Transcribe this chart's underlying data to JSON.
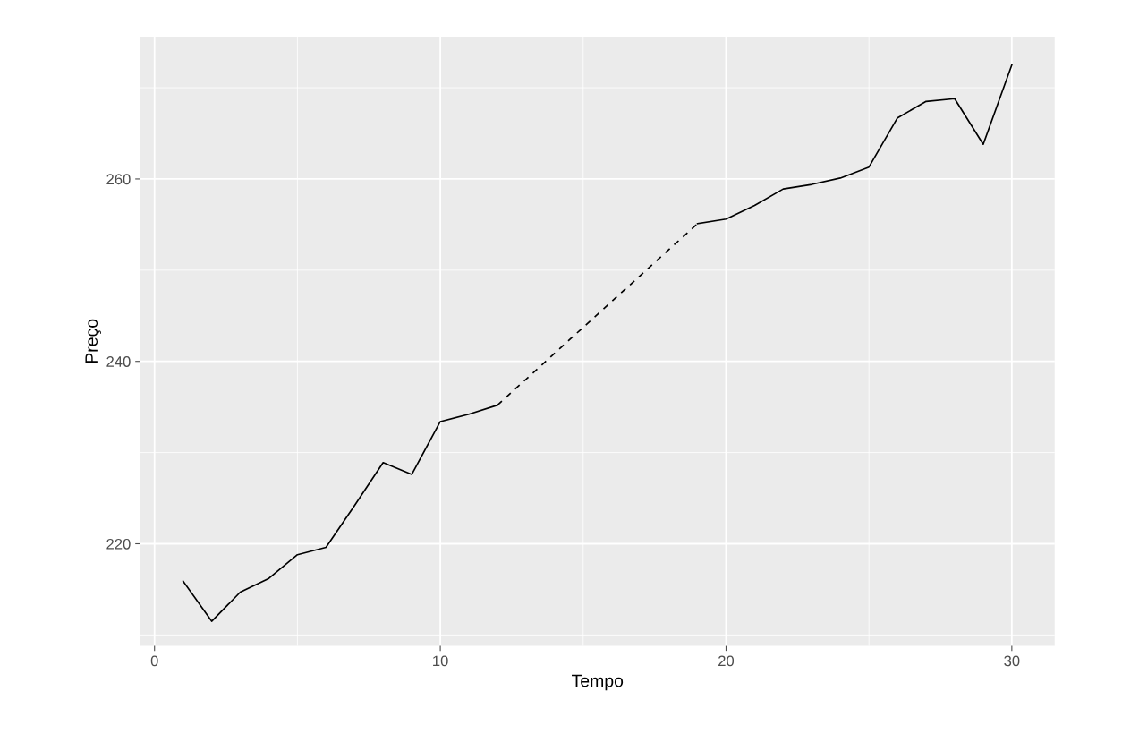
{
  "chart_data": {
    "type": "line",
    "xlabel": "Tempo",
    "ylabel": "Preço",
    "xlim": [
      -0.5,
      31.5
    ],
    "xticks": [
      0,
      10,
      20,
      30
    ],
    "ylim": [
      208.8,
      275.6
    ],
    "yticks": [
      220,
      240,
      260
    ],
    "grid": true,
    "marker": "none",
    "series": [
      {
        "color": "#000000",
        "line_style": "solid",
        "x": [
          1,
          2,
          3,
          4,
          5,
          6,
          7,
          8,
          9,
          10,
          11,
          12
        ],
        "values": [
          215.9,
          211.5,
          214.7,
          216.2,
          218.8,
          219.6,
          224.2,
          228.9,
          227.6,
          233.4,
          234.2,
          235.2
        ]
      },
      {
        "color": "#000000",
        "line_style": "dashed",
        "x": [
          12,
          19
        ],
        "values": [
          235.2,
          255.1
        ]
      },
      {
        "color": "#000000",
        "line_style": "solid",
        "x": [
          19,
          20,
          21,
          22,
          23,
          24,
          25,
          26,
          27,
          28,
          29,
          30
        ],
        "values": [
          255.1,
          255.6,
          257.1,
          258.9,
          259.4,
          260.1,
          261.3,
          266.7,
          268.5,
          268.8,
          263.8,
          272.5
        ]
      }
    ]
  }
}
